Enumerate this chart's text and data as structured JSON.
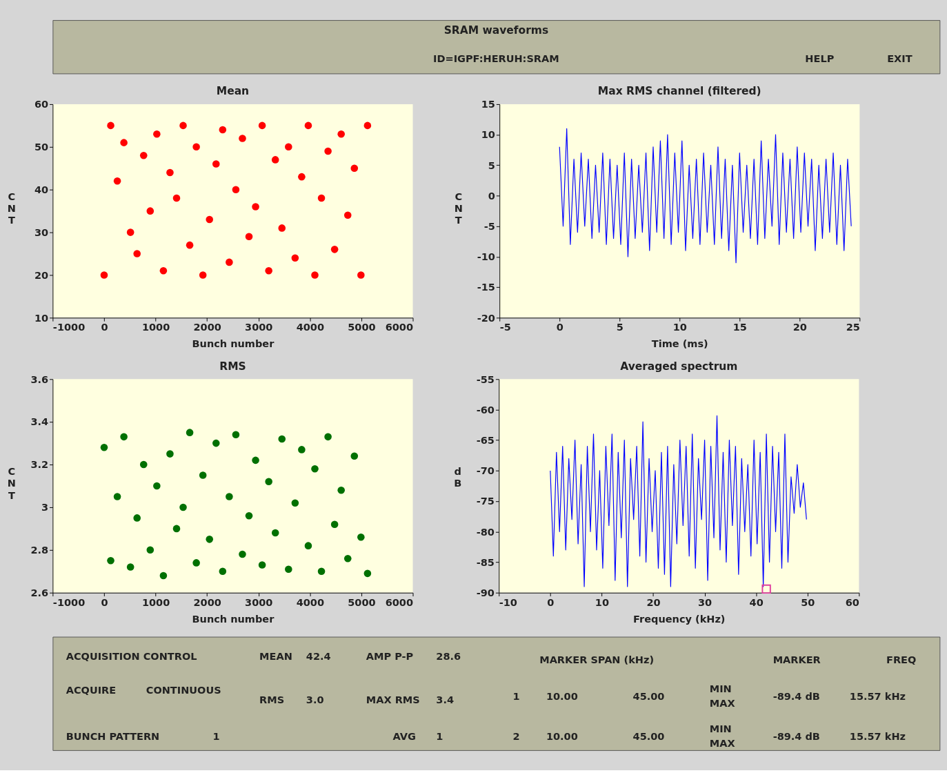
{
  "chart_data": [
    {
      "type": "other",
      "title": "SRAM waveforms",
      "annotations": [
        "ID=IGPF:HERUH:SRAM",
        "HELP",
        "EXIT"
      ]
    },
    {
      "type": "scatter",
      "title": "Mean",
      "xlabel": "Bunch number",
      "ylabel": "CNT",
      "marker": "circle",
      "grid": false,
      "xlim": [
        -1000,
        6000
      ],
      "xticks": [
        -1000,
        0,
        1000,
        2000,
        3000,
        4000,
        5000,
        6000
      ],
      "ylim": [
        10,
        60
      ],
      "yticks": [
        10,
        20,
        30,
        40,
        50,
        60
      ],
      "series": [
        {
          "color": "#ff0000",
          "x": [
            0,
            128,
            256,
            384,
            512,
            640,
            768,
            896,
            1024,
            1152,
            1280,
            1408,
            1536,
            1664,
            1792,
            1920,
            2048,
            2176,
            2304,
            2432,
            2560,
            2688,
            2816,
            2944,
            3072,
            3200,
            3328,
            3456,
            3584,
            3712,
            3840,
            3968,
            4096,
            4224,
            4352,
            4480,
            4608,
            4736,
            4864,
            4992,
            5120
          ],
          "values": [
            20,
            55,
            42,
            51,
            30,
            25,
            48,
            35,
            53,
            21,
            44,
            38,
            55,
            27,
            50,
            20,
            33,
            46,
            54,
            23,
            40,
            52,
            29,
            36,
            55,
            21,
            47,
            31,
            50,
            24,
            43,
            55,
            20,
            38,
            49,
            26,
            53,
            34,
            45,
            20,
            55
          ]
        }
      ]
    },
    {
      "type": "line",
      "title": "Max RMS channel (filtered)",
      "xlabel": "Time (ms)",
      "ylabel": "CNT",
      "grid": false,
      "xlim": [
        -5,
        25
      ],
      "xticks": [
        -5,
        0,
        5,
        10,
        15,
        20,
        25
      ],
      "ylim": [
        -20,
        15
      ],
      "yticks": [
        -20,
        -15,
        -10,
        -5,
        0,
        5,
        10,
        15
      ],
      "series": [
        {
          "color": "#0000ff",
          "x": [
            0,
            0.3,
            0.6,
            0.9,
            1.2,
            1.5,
            1.8,
            2.1,
            2.4,
            2.7,
            3,
            3.3,
            3.6,
            3.9,
            4.2,
            4.5,
            4.8,
            5.1,
            5.4,
            5.7,
            6,
            6.3,
            6.6,
            6.9,
            7.2,
            7.5,
            7.8,
            8.1,
            8.4,
            8.7,
            9,
            9.3,
            9.6,
            9.9,
            10.2,
            10.5,
            10.8,
            11.1,
            11.4,
            11.7,
            12,
            12.3,
            12.6,
            12.9,
            13.2,
            13.5,
            13.8,
            14.1,
            14.4,
            14.7,
            15,
            15.3,
            15.6,
            15.9,
            16.2,
            16.5,
            16.8,
            17.1,
            17.4,
            17.7,
            18,
            18.3,
            18.6,
            18.9,
            19.2,
            19.5,
            19.8,
            20.1,
            20.4,
            20.7,
            21,
            21.3,
            21.6,
            21.9,
            22.2,
            22.5,
            22.8,
            23.1,
            23.4,
            23.7,
            24,
            24.3
          ],
          "values": [
            8,
            -5,
            11,
            -8,
            6,
            -6,
            7,
            -5,
            6,
            -7,
            5,
            -6,
            7,
            -8,
            6,
            -7,
            5,
            -8,
            7,
            -10,
            6,
            -7,
            5,
            -6,
            7,
            -9,
            8,
            -6,
            9,
            -7,
            10,
            -8,
            7,
            -6,
            9,
            -9,
            5,
            -7,
            6,
            -8,
            7,
            -6,
            5,
            -8,
            8,
            -7,
            6,
            -9,
            5,
            -11,
            7,
            -6,
            5,
            -7,
            6,
            -8,
            9,
            -7,
            6,
            -5,
            10,
            -8,
            7,
            -6,
            6,
            -7,
            8,
            -6,
            7,
            -5,
            6,
            -9,
            5,
            -7,
            6,
            -6,
            7,
            -8,
            5,
            -9,
            6,
            -5
          ]
        }
      ]
    },
    {
      "type": "scatter",
      "title": "RMS",
      "xlabel": "Bunch number",
      "ylabel": "CNT",
      "marker": "circle",
      "grid": false,
      "xlim": [
        -1000,
        6000
      ],
      "xticks": [
        -1000,
        0,
        1000,
        2000,
        3000,
        4000,
        5000,
        6000
      ],
      "ylim": [
        2.6,
        3.6
      ],
      "yticks": [
        2.6,
        2.8,
        3,
        3.2,
        3.4,
        3.6
      ],
      "series": [
        {
          "color": "#007000",
          "x": [
            0,
            128,
            256,
            384,
            512,
            640,
            768,
            896,
            1024,
            1152,
            1280,
            1408,
            1536,
            1664,
            1792,
            1920,
            2048,
            2176,
            2304,
            2432,
            2560,
            2688,
            2816,
            2944,
            3072,
            3200,
            3328,
            3456,
            3584,
            3712,
            3840,
            3968,
            4096,
            4224,
            4352,
            4480,
            4608,
            4736,
            4864,
            4992,
            5120
          ],
          "values": [
            3.28,
            2.75,
            3.05,
            3.33,
            2.72,
            2.95,
            3.2,
            2.8,
            3.1,
            2.68,
            3.25,
            2.9,
            3.0,
            3.35,
            2.74,
            3.15,
            2.85,
            3.3,
            2.7,
            3.05,
            3.34,
            2.78,
            2.96,
            3.22,
            2.73,
            3.12,
            2.88,
            3.32,
            2.71,
            3.02,
            3.27,
            2.82,
            3.18,
            2.7,
            3.33,
            2.92,
            3.08,
            2.76,
            3.24,
            2.86,
            2.69
          ]
        }
      ]
    },
    {
      "type": "line",
      "title": "Averaged spectrum",
      "xlabel": "Frequency (kHz)",
      "ylabel": "dB",
      "grid": false,
      "xlim": [
        -10,
        60
      ],
      "xticks": [
        -10,
        0,
        10,
        20,
        30,
        40,
        50,
        60
      ],
      "ylim": [
        -90,
        -55
      ],
      "yticks": [
        -90,
        -85,
        -80,
        -75,
        -70,
        -65,
        -60,
        -55
      ],
      "series": [
        {
          "color": "#0000ff",
          "x": [
            0,
            0.6,
            1.2,
            1.8,
            2.4,
            3,
            3.6,
            4.2,
            4.8,
            5.4,
            6,
            6.6,
            7.2,
            7.8,
            8.4,
            9,
            9.6,
            10.2,
            10.8,
            11.4,
            12,
            12.6,
            13.2,
            13.8,
            14.4,
            15,
            15.6,
            16.2,
            16.8,
            17.4,
            18,
            18.6,
            19.2,
            19.8,
            20.4,
            21,
            21.6,
            22.2,
            22.8,
            23.4,
            24,
            24.6,
            25.2,
            25.8,
            26.4,
            27,
            27.6,
            28.2,
            28.8,
            29.4,
            30,
            30.6,
            31.2,
            31.8,
            32.4,
            33,
            33.6,
            34.2,
            34.8,
            35.4,
            36,
            36.6,
            37.2,
            37.8,
            38.4,
            39,
            39.6,
            40.2,
            40.8,
            41.4,
            42,
            42.6,
            43.2,
            43.8,
            44.4,
            45,
            45.6,
            46.2,
            46.8,
            47.4,
            48,
            48.6,
            49.2,
            49.8
          ],
          "values": [
            -70,
            -84,
            -67,
            -80,
            -66,
            -83,
            -68,
            -78,
            -65,
            -82,
            -69,
            -89,
            -66,
            -80,
            -64,
            -83,
            -70,
            -86,
            -66,
            -79,
            -64,
            -88,
            -67,
            -81,
            -65,
            -89,
            -68,
            -78,
            -66,
            -84,
            -62,
            -85,
            -68,
            -80,
            -70,
            -86,
            -67,
            -87,
            -66,
            -89,
            -69,
            -82,
            -65,
            -79,
            -66,
            -84,
            -64,
            -86,
            -68,
            -78,
            -65,
            -88,
            -66,
            -81,
            -61,
            -83,
            -67,
            -85,
            -65,
            -79,
            -66,
            -87,
            -68,
            -80,
            -69,
            -84,
            -65,
            -82,
            -67,
            -89,
            -64,
            -85,
            -66,
            -80,
            -67,
            -86,
            -64,
            -85,
            -71,
            -77,
            -69,
            -76,
            -72,
            -78
          ]
        },
        {
          "type": "scatter",
          "marker": "square",
          "color": "#e0409f",
          "x": [
            42
          ],
          "values": [
            -89.4
          ]
        }
      ]
    },
    {
      "type": "other",
      "annotations": [
        "ACQUISITION CONTROL",
        "MEAN",
        "42.4",
        "AMP P-P",
        "28.6",
        "MARKER SPAN (kHz)",
        "MARKER",
        "FREQ",
        "ACQUIRE",
        "CONTINUOUS",
        "RMS",
        "3.0",
        "MAX RMS",
        "3.4",
        "1",
        "10.00",
        "45.00",
        "MIN",
        "MAX",
        "-89.4 dB",
        "15.57 kHz",
        "BUNCH PATTERN",
        "1",
        "AVG",
        "1",
        "2",
        "10.00",
        "45.00",
        "MIN",
        "MAX",
        "-89.4 dB",
        "15.57 kHz"
      ]
    }
  ]
}
